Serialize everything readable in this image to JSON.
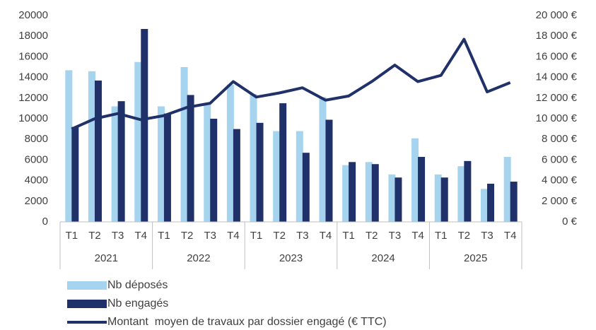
{
  "chart_data": {
    "type": "bar_line",
    "categories": [
      "T1",
      "T2",
      "T3",
      "T4",
      "T1",
      "T2",
      "T3",
      "T4",
      "T1",
      "T2",
      "T3",
      "T4",
      "T1",
      "T2",
      "T3",
      "T4",
      "T1",
      "T2",
      "T3",
      "T4"
    ],
    "groups": [
      "2021",
      "2022",
      "2023",
      "2024",
      "2025"
    ],
    "series": [
      {
        "name": "Nb déposés",
        "type": "bar",
        "color": "#a6d4ee",
        "values": [
          14700,
          14600,
          11200,
          15500,
          11200,
          15000,
          11500,
          13300,
          12400,
          8800,
          8800,
          12100,
          5500,
          5800,
          4600,
          8100,
          4600,
          5400,
          3200,
          6300
        ]
      },
      {
        "name": "Nb engagés",
        "type": "bar",
        "color": "#1f3168",
        "values": [
          9200,
          13700,
          11700,
          18700,
          10500,
          12300,
          10000,
          9000,
          9600,
          11500,
          6700,
          9900,
          5800,
          5600,
          4300,
          6300,
          4300,
          5900,
          3700,
          3900
        ]
      },
      {
        "name": "Montant  moyen de travaux par dossier engagé (€ TTC)",
        "type": "line",
        "axis": "y2",
        "color": "#1f3168",
        "values": [
          9000,
          10000,
          10500,
          9900,
          10300,
          11100,
          11500,
          13600,
          12100,
          12500,
          13000,
          11800,
          12200,
          13600,
          15200,
          13600,
          14200,
          17700,
          12600,
          13500
        ]
      }
    ],
    "ylim": [
      0,
      20000
    ],
    "yticks": [
      0,
      2000,
      4000,
      6000,
      8000,
      10000,
      12000,
      14000,
      16000,
      18000,
      20000
    ],
    "y2lim": [
      0,
      20000
    ],
    "y2ticks": [
      {
        "value": 0,
        "label": "0 €"
      },
      {
        "value": 2000,
        "label": "2 000 €"
      },
      {
        "value": 4000,
        "label": "4 000 €"
      },
      {
        "value": 6000,
        "label": "6 000 €"
      },
      {
        "value": 8000,
        "label": "8 000 €"
      },
      {
        "value": 10000,
        "label": "10 000 €"
      },
      {
        "value": 12000,
        "label": "12 000 €"
      },
      {
        "value": 14000,
        "label": "14 000 €"
      },
      {
        "value": 16000,
        "label": "16 000 €"
      },
      {
        "value": 18000,
        "label": "18 000 €"
      },
      {
        "value": 20000,
        "label": "20 000 €"
      }
    ]
  }
}
